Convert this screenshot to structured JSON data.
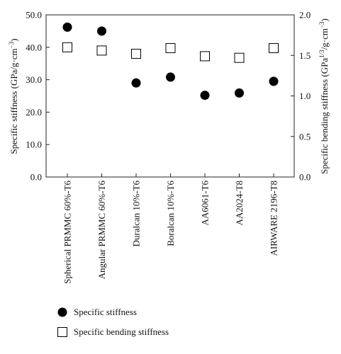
{
  "chart_data": {
    "type": "scatter",
    "categories": [
      "Spherical PRMMC 60%-T6",
      "Angular PRMMC 60%-T6",
      "Duralcan 10%-T6",
      "Boralcan 10%-T6",
      "AA6061-T6",
      "AA2024-T8",
      "AIRWARE 2196-T8"
    ],
    "series": [
      {
        "name": "Specific stiffness",
        "axis": "left",
        "marker": "filled-circle",
        "values": [
          46.2,
          45.0,
          29.0,
          30.8,
          25.2,
          25.9,
          29.5
        ]
      },
      {
        "name": "Specific bending stiffness",
        "axis": "right",
        "marker": "open-square",
        "values": [
          1.6,
          1.56,
          1.52,
          1.59,
          1.49,
          1.47,
          1.59
        ]
      }
    ],
    "ylabel": "Specific stiffness (GPa/g·cm",
    "ylabel_sup": "−3",
    "ylabel_end": ")",
    "ylim": [
      0,
      50
    ],
    "yticks": [
      "0.0",
      "10.0",
      "20.0",
      "30.0",
      "40.0",
      "50.0"
    ],
    "y2label": "Specific bending stiffness (GPa",
    "y2label_sup": "1/3",
    "y2label_mid": "/g·cm",
    "y2label_sup2": "−3",
    "y2label_end": ")",
    "y2lim": [
      0,
      2
    ],
    "y2ticks": [
      "0.0",
      "0.5",
      "1.0",
      "1.5",
      "2.0"
    ],
    "legend_position": "bottom-left",
    "colors": {
      "marker": "#000000",
      "frame": "#222222"
    }
  }
}
